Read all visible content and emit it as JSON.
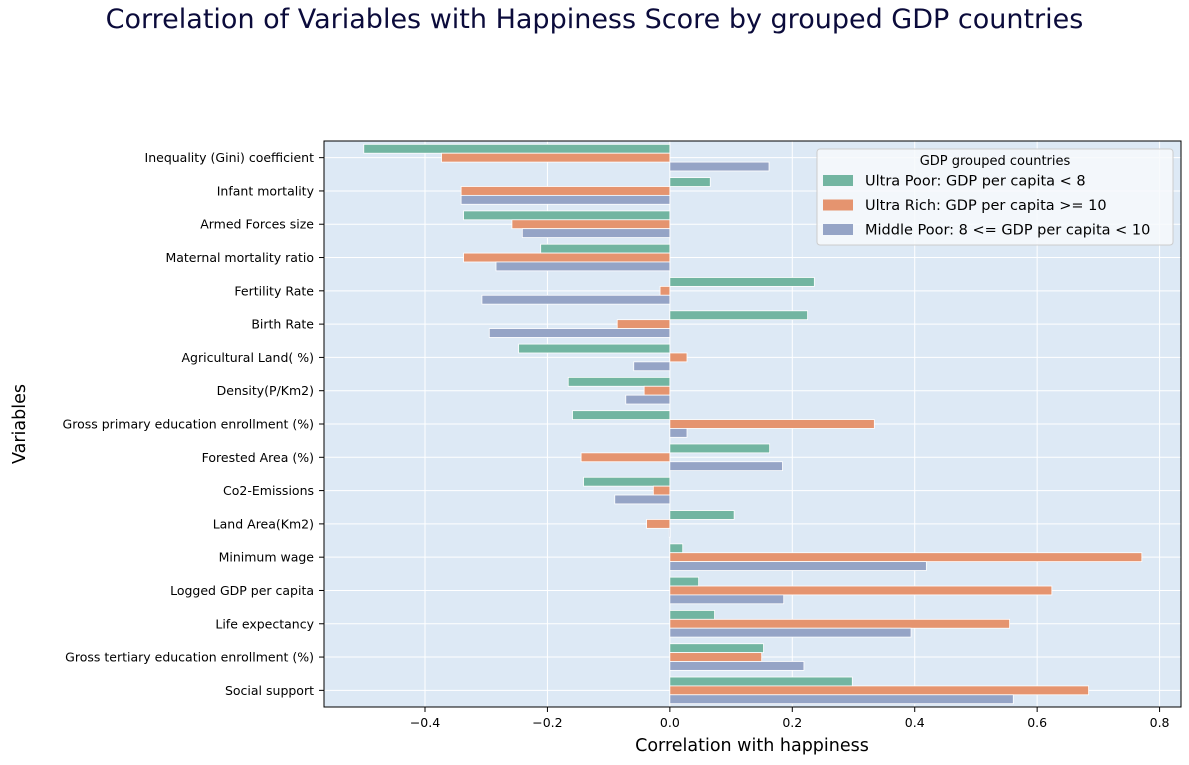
{
  "title": "Correlation of Variables with Happiness Score by grouped GDP countries",
  "chart_data": {
    "type": "bar",
    "orientation": "horizontal",
    "title": "Correlation of Variables with Happiness Score by grouped GDP countries",
    "xlabel": "Correlation with happiness",
    "ylabel": "Variables",
    "xlim": [
      -0.565,
      0.835
    ],
    "xticks": [
      -0.4,
      -0.2,
      0.0,
      0.2,
      0.4,
      0.6,
      0.8
    ],
    "xtick_labels": [
      "−0.4",
      "−0.2",
      "0.0",
      "0.2",
      "0.4",
      "0.6",
      "0.8"
    ],
    "grid": true,
    "legend_position": "top-right",
    "legend_title": "GDP grouped countries",
    "categories": [
      "Inequality (Gini) coefficient",
      "Infant mortality",
      "Armed Forces size",
      "Maternal mortality ratio",
      "Fertility Rate",
      "Birth Rate",
      "Agricultural Land( %)",
      "Density(P/Km2)",
      "Gross primary education enrollment (%)",
      "Forested Area (%)",
      "Co2-Emissions",
      "Land Area(Km2)",
      "Minimum wage",
      "Logged GDP per capita",
      "Life expectancy",
      "Gross tertiary education enrollment (%)",
      "Social support"
    ],
    "series": [
      {
        "name": "Ultra Poor: GDP per capita < 8",
        "color": "#72b5a1",
        "values": [
          -0.5,
          0.066,
          -0.337,
          -0.211,
          0.236,
          0.225,
          -0.247,
          -0.166,
          -0.159,
          0.163,
          -0.141,
          0.105,
          0.021,
          0.047,
          0.073,
          0.153,
          0.298
        ]
      },
      {
        "name": "Ultra Rich: GDP per capita >= 10",
        "color": "#e5946f",
        "values": [
          -0.373,
          -0.341,
          -0.258,
          -0.337,
          -0.016,
          -0.086,
          0.028,
          -0.042,
          0.334,
          -0.145,
          -0.027,
          -0.038,
          0.771,
          0.624,
          0.555,
          0.15,
          0.684
        ]
      },
      {
        "name": "Middle Poor: 8 <= GDP per capita < 10",
        "color": "#95a4c6",
        "values": [
          0.162,
          -0.341,
          -0.241,
          -0.284,
          -0.307,
          -0.295,
          -0.059,
          -0.072,
          0.028,
          0.184,
          -0.09,
          -0.001,
          0.419,
          0.186,
          0.394,
          0.219,
          0.561
        ]
      }
    ]
  }
}
